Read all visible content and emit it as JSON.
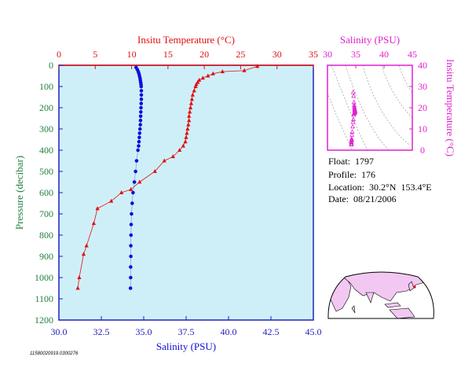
{
  "main_chart": {
    "top_axis_label": "Insitu Temperature (°C)",
    "bottom_axis_label": "Salinity (PSU)",
    "left_axis_label": "Pressure (decibar)",
    "temp_ticks": [
      "0",
      "5",
      "10",
      "15",
      "20",
      "25",
      "30",
      "35"
    ],
    "sal_ticks": [
      "30.0",
      "32.5",
      "35.0",
      "37.5",
      "40.0",
      "42.5",
      "45.0"
    ],
    "pres_ticks": [
      "0",
      "100",
      "200",
      "300",
      "400",
      "500",
      "600",
      "700",
      "800",
      "900",
      "1000",
      "1100",
      "1200"
    ]
  },
  "ts_inset": {
    "top_axis_label": "Salinity (PSU)",
    "right_axis_label": "Insitu Temperature (°C)",
    "sal_ticks": [
      "30",
      "35",
      "40",
      "45"
    ],
    "temp_ticks": [
      "0",
      "10",
      "20",
      "30",
      "40"
    ]
  },
  "info": {
    "float": "Float:  1797",
    "profile": "Profile:  176",
    "location": "Location:  30.2°N  153.4°E",
    "date": "Date:  08/21/2006"
  },
  "footer_code": "11580020919.0300276",
  "colors": {
    "temperature": "#e01010",
    "salinity": "#1010d8",
    "ts_points": "#e020d0",
    "plot_bg": "#cfeff8",
    "axis_blue": "#2020c0",
    "land": "#f2c8f2",
    "ocean": "#ffffff"
  },
  "chart_data": [
    {
      "type": "line",
      "title": "",
      "y_label": "Pressure (decibar)",
      "ylim": [
        1200,
        0
      ],
      "series": [
        {
          "name": "Insitu Temperature (°C)",
          "x_axis": "top",
          "xlim": [
            0,
            35
          ],
          "marker": "triangle",
          "points": [
            [
              27.3,
              5
            ],
            [
              25.5,
              25
            ],
            [
              22.5,
              30
            ],
            [
              21.2,
              40
            ],
            [
              20.5,
              50
            ],
            [
              19.8,
              60
            ],
            [
              19.3,
              70
            ],
            [
              19.1,
              80
            ],
            [
              18.9,
              90
            ],
            [
              18.8,
              100
            ],
            [
              18.6,
              120
            ],
            [
              18.4,
              140
            ],
            [
              18.3,
              160
            ],
            [
              18.2,
              180
            ],
            [
              18.1,
              200
            ],
            [
              18.0,
              220
            ],
            [
              17.9,
              240
            ],
            [
              17.9,
              260
            ],
            [
              17.8,
              280
            ],
            [
              17.7,
              300
            ],
            [
              17.6,
              320
            ],
            [
              17.5,
              340
            ],
            [
              17.4,
              360
            ],
            [
              17.1,
              380
            ],
            [
              16.6,
              400
            ],
            [
              15.7,
              430
            ],
            [
              14.5,
              450
            ],
            [
              13.2,
              500
            ],
            [
              11.1,
              550
            ],
            [
              9.9,
              585
            ],
            [
              8.6,
              600
            ],
            [
              7.2,
              640
            ],
            [
              5.3,
              675
            ],
            [
              4.8,
              745
            ],
            [
              3.8,
              850
            ],
            [
              3.4,
              890
            ],
            [
              2.8,
              1000
            ],
            [
              2.6,
              1050
            ]
          ]
        },
        {
          "name": "Salinity (PSU)",
          "x_axis": "bottom",
          "xlim": [
            30,
            45
          ],
          "marker": "circle",
          "points": [
            [
              34.55,
              10
            ],
            [
              34.62,
              20
            ],
            [
              34.68,
              30
            ],
            [
              34.72,
              40
            ],
            [
              34.75,
              50
            ],
            [
              34.78,
              60
            ],
            [
              34.8,
              70
            ],
            [
              34.82,
              80
            ],
            [
              34.84,
              90
            ],
            [
              34.85,
              100
            ],
            [
              34.86,
              120
            ],
            [
              34.86,
              140
            ],
            [
              34.86,
              160
            ],
            [
              34.85,
              180
            ],
            [
              34.84,
              200
            ],
            [
              34.83,
              220
            ],
            [
              34.82,
              240
            ],
            [
              34.81,
              260
            ],
            [
              34.8,
              280
            ],
            [
              34.78,
              300
            ],
            [
              34.76,
              320
            ],
            [
              34.74,
              340
            ],
            [
              34.72,
              360
            ],
            [
              34.7,
              380
            ],
            [
              34.66,
              400
            ],
            [
              34.58,
              450
            ],
            [
              34.52,
              500
            ],
            [
              34.45,
              550
            ],
            [
              34.37,
              600
            ],
            [
              34.32,
              650
            ],
            [
              34.28,
              700
            ],
            [
              34.26,
              750
            ],
            [
              34.25,
              800
            ],
            [
              34.24,
              850
            ],
            [
              34.24,
              900
            ],
            [
              34.23,
              950
            ],
            [
              34.23,
              1000
            ],
            [
              34.22,
              1050
            ]
          ]
        }
      ]
    },
    {
      "type": "scatter",
      "title": "",
      "x_label": "Salinity (PSU)",
      "y_label": "Insitu Temperature (°C)",
      "xlim": [
        30,
        45
      ],
      "ylim": [
        0,
        40
      ],
      "series": [
        {
          "name": "",
          "points": [
            [
              34.55,
              27.3
            ],
            [
              34.62,
              25.5
            ],
            [
              34.68,
              22.5
            ],
            [
              34.72,
              21.2
            ],
            [
              34.75,
              20.5
            ],
            [
              34.78,
              19.8
            ],
            [
              34.8,
              19.3
            ],
            [
              34.82,
              19.1
            ],
            [
              34.84,
              18.9
            ],
            [
              34.85,
              18.8
            ],
            [
              34.86,
              18.6
            ],
            [
              34.86,
              18.4
            ],
            [
              34.86,
              18.3
            ],
            [
              34.85,
              18.2
            ],
            [
              34.84,
              18.1
            ],
            [
              34.83,
              18.0
            ],
            [
              34.82,
              17.9
            ],
            [
              34.81,
              17.9
            ],
            [
              34.8,
              17.8
            ],
            [
              34.78,
              17.7
            ],
            [
              34.76,
              17.6
            ],
            [
              34.74,
              17.5
            ],
            [
              34.72,
              17.4
            ],
            [
              34.7,
              17.1
            ],
            [
              34.66,
              16.6
            ],
            [
              34.58,
              14.5
            ],
            [
              34.52,
              13.2
            ],
            [
              34.45,
              11.1
            ],
            [
              34.37,
              8.6
            ],
            [
              34.32,
              7.2
            ],
            [
              34.28,
              5.3
            ],
            [
              34.26,
              4.8
            ],
            [
              34.25,
              4.5
            ],
            [
              34.24,
              3.8
            ],
            [
              34.24,
              3.4
            ],
            [
              34.23,
              2.8
            ],
            [
              34.23,
              2.7
            ],
            [
              34.22,
              2.6
            ]
          ]
        }
      ]
    }
  ]
}
